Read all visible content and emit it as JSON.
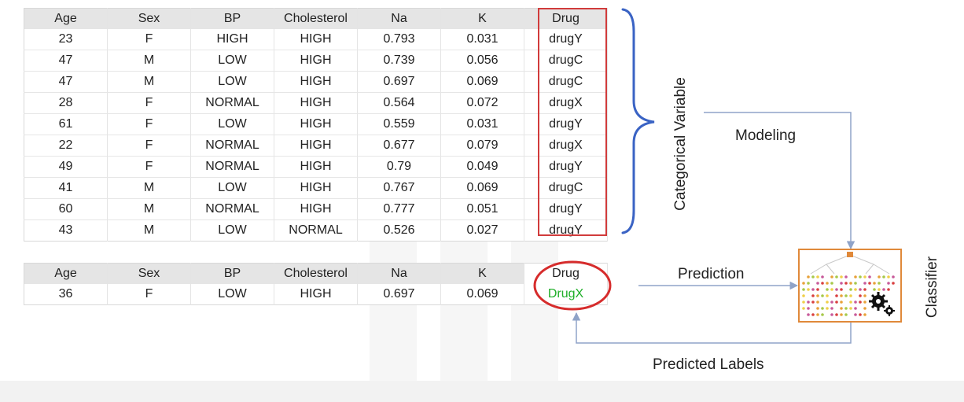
{
  "training_table": {
    "headers": [
      "Age",
      "Sex",
      "BP",
      "Cholesterol",
      "Na",
      "K",
      "Drug"
    ],
    "rows": [
      [
        "23",
        "F",
        "HIGH",
        "HIGH",
        "0.793",
        "0.031",
        "drugY"
      ],
      [
        "47",
        "M",
        "LOW",
        "HIGH",
        "0.739",
        "0.056",
        "drugC"
      ],
      [
        "47",
        "M",
        "LOW",
        "HIGH",
        "0.697",
        "0.069",
        "drugC"
      ],
      [
        "28",
        "F",
        "NORMAL",
        "HIGH",
        "0.564",
        "0.072",
        "drugX"
      ],
      [
        "61",
        "F",
        "LOW",
        "HIGH",
        "0.559",
        "0.031",
        "drugY"
      ],
      [
        "22",
        "F",
        "NORMAL",
        "HIGH",
        "0.677",
        "0.079",
        "drugX"
      ],
      [
        "49",
        "F",
        "NORMAL",
        "HIGH",
        "0.79",
        "0.049",
        "drugY"
      ],
      [
        "41",
        "M",
        "LOW",
        "HIGH",
        "0.767",
        "0.069",
        "drugC"
      ],
      [
        "60",
        "M",
        "NORMAL",
        "HIGH",
        "0.777",
        "0.051",
        "drugY"
      ],
      [
        "43",
        "M",
        "LOW",
        "NORMAL",
        "0.526",
        "0.027",
        "drugY"
      ]
    ]
  },
  "prediction_table": {
    "headers": [
      "Age",
      "Sex",
      "BP",
      "Cholesterol",
      "Na",
      "K",
      "Drug"
    ],
    "row": [
      "36",
      "F",
      "LOW",
      "HIGH",
      "0.697",
      "0.069"
    ],
    "predicted_drug": "DrugX"
  },
  "labels": {
    "categorical_variable": "Categorical Variable",
    "modeling": "Modeling",
    "prediction": "Prediction",
    "predicted_labels": "Predicted Labels",
    "classifier": "Classifier"
  },
  "colors": {
    "highlight_border": "#d13b3b",
    "predicted_text": "#1fae28",
    "brace": "#3a63c4",
    "arrow": "#8fa3c8",
    "classifier_border": "#e0893a"
  },
  "icons": {
    "classifier": "decision-tree-gears-icon",
    "brace": "curly-brace-icon"
  }
}
